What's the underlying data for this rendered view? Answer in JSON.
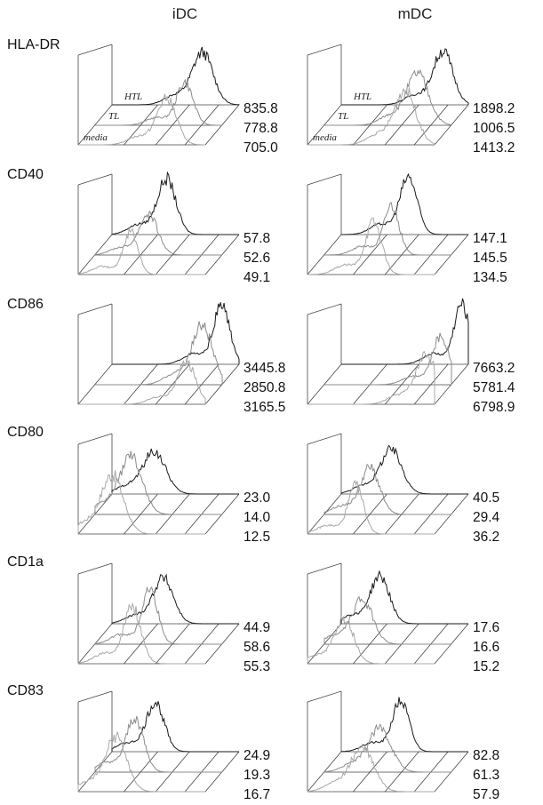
{
  "column_headers": [
    "iDC",
    "mDC"
  ],
  "series_labels": [
    "HTL",
    "TL",
    "media"
  ],
  "colors": {
    "HTL": "#1a1a1a",
    "TL": "#8c8c8c",
    "media": "#a8a8a8",
    "grid": "#444444"
  },
  "chart_data": [
    {
      "type": "area",
      "marker": "HLA-DR",
      "condition": "iDC",
      "values": {
        "HTL": "835.8",
        "TL": "778.8",
        "media": "705.0"
      }
    },
    {
      "type": "area",
      "marker": "HLA-DR",
      "condition": "mDC",
      "values": {
        "HTL": "1898.2",
        "TL": "1006.5",
        "media": "1413.2"
      }
    },
    {
      "type": "area",
      "marker": "CD40",
      "condition": "iDC",
      "values": {
        "HTL": "57.8",
        "TL": "52.6",
        "media": "49.1"
      }
    },
    {
      "type": "area",
      "marker": "CD40",
      "condition": "mDC",
      "values": {
        "HTL": "147.1",
        "TL": "145.5",
        "media": "134.5"
      }
    },
    {
      "type": "area",
      "marker": "CD86",
      "condition": "iDC",
      "values": {
        "HTL": "3445.8",
        "TL": "2850.8",
        "media": "3165.5"
      }
    },
    {
      "type": "area",
      "marker": "CD86",
      "condition": "mDC",
      "values": {
        "HTL": "7663.2",
        "TL": "5781.4",
        "media": "6798.9"
      }
    },
    {
      "type": "area",
      "marker": "CD80",
      "condition": "iDC",
      "values": {
        "HTL": "23.0",
        "TL": "14.0",
        "media": "12.5"
      }
    },
    {
      "type": "area",
      "marker": "CD80",
      "condition": "mDC",
      "values": {
        "HTL": "40.5",
        "TL": "29.4",
        "media": "36.2"
      }
    },
    {
      "type": "area",
      "marker": "CD1a",
      "condition": "iDC",
      "values": {
        "HTL": "44.9",
        "TL": "58.6",
        "media": "55.3"
      }
    },
    {
      "type": "area",
      "marker": "CD1a",
      "condition": "mDC",
      "values": {
        "HTL": "17.6",
        "TL": "16.6",
        "media": "15.2"
      }
    },
    {
      "type": "area",
      "marker": "CD83",
      "condition": "iDC",
      "values": {
        "HTL": "24.9",
        "TL": "19.3",
        "media": "16.7"
      }
    },
    {
      "type": "area",
      "marker": "CD83",
      "condition": "mDC",
      "values": {
        "HTL": "82.8",
        "TL": "61.3",
        "media": "57.9"
      }
    }
  ]
}
